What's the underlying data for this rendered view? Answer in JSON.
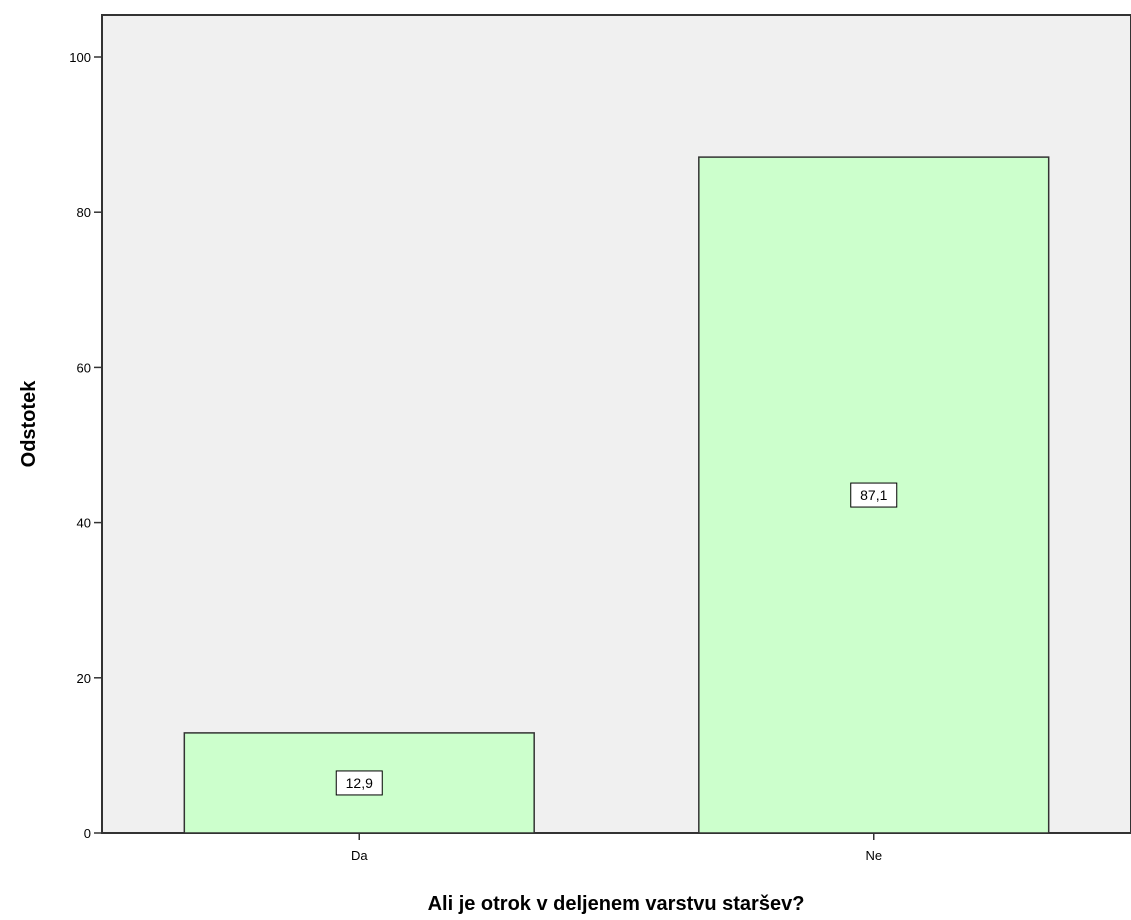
{
  "chart_data": {
    "type": "bar",
    "categories": [
      "Da",
      "Ne"
    ],
    "values": [
      12.9,
      87.1
    ],
    "data_labels": [
      "12,9",
      "87,1"
    ],
    "title": "",
    "xlabel": "Ali je otrok v deljenem varstvu staršev?",
    "ylabel": "Odstotek",
    "ylim": [
      0,
      100
    ],
    "yticks": [
      0,
      20,
      40,
      60,
      80,
      100
    ],
    "grid": false,
    "legend": "none",
    "colors": {
      "bar_fill": "#ccffcc",
      "bar_stroke": "#333333",
      "plot_background": "#f0f0f0",
      "page_background": "#ffffff",
      "axis": "#333333"
    }
  }
}
